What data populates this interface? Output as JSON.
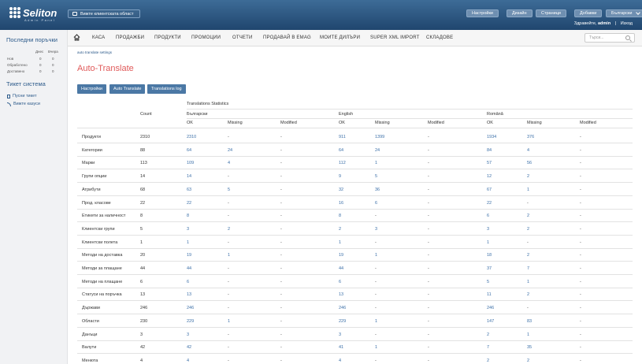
{
  "header": {
    "logo_text": "Seliton",
    "logo_sub": "Admin Panel",
    "client_btn": "Вижте клиентската област",
    "buttons": [
      "Настройки",
      "Дизайн",
      "Страници",
      "Добавки",
      "Български"
    ],
    "greet_prefix": "Здравейте,",
    "greet_user": "admin",
    "greet_sep": "|",
    "logout": "Изход"
  },
  "nav": {
    "items": [
      "КАСА",
      "ПРОДАЖБИ",
      "ПРОДУКТИ",
      "ПРОМОЦИИ",
      "ОТЧЕТИ",
      "ПРОДАВАЙ В EMAG",
      "МОИТЕ ДИЛЪРИ",
      "SUPER XML IMPORT",
      "СКЛАДОВЕ"
    ],
    "search_placeholder": "Търси..."
  },
  "sidebar": {
    "orders_title": "Последни поръчки",
    "col_today": "Днес",
    "col_yesterday": "Вчера",
    "rows": [
      {
        "label": "Нов",
        "today": "0",
        "yesterday": "0"
      },
      {
        "label": "Обработено",
        "today": "0",
        "yesterday": "0"
      },
      {
        "label": "Доставено",
        "today": "0",
        "yesterday": "0"
      }
    ],
    "tickets_title": "Тикет система",
    "links": [
      "Пусни тикет",
      "Вижте казуси"
    ]
  },
  "main": {
    "breadcrumb": "auto translate settings",
    "title": "Auto-Translate",
    "tabs": [
      "Настройки",
      "Auto Translate",
      "Translations log"
    ],
    "stats_title": "Translations Statistics",
    "count_header": "Count",
    "languages": [
      "Български",
      "English",
      "Română"
    ],
    "sub_headers": [
      "OK",
      "Missing",
      "Modified"
    ],
    "rows": [
      {
        "label": "Продукти",
        "count": "2310",
        "v": [
          "2310",
          "-",
          "-",
          "911",
          "1399",
          "-",
          "1934",
          "376",
          "-"
        ]
      },
      {
        "label": "Категории",
        "count": "88",
        "v": [
          "64",
          "24",
          "-",
          "64",
          "24",
          "-",
          "84",
          "4",
          "-"
        ]
      },
      {
        "label": "Марки",
        "count": "113",
        "v": [
          "109",
          "4",
          "-",
          "112",
          "1",
          "-",
          "57",
          "56",
          "-"
        ]
      },
      {
        "label": "Групи опции",
        "count": "14",
        "v": [
          "14",
          "-",
          "-",
          "9",
          "5",
          "-",
          "12",
          "2",
          "-"
        ]
      },
      {
        "label": "Атрибути",
        "count": "68",
        "v": [
          "63",
          "5",
          "-",
          "32",
          "36",
          "-",
          "67",
          "1",
          "-"
        ]
      },
      {
        "label": "Прод. класове",
        "count": "22",
        "v": [
          "22",
          "-",
          "-",
          "16",
          "6",
          "-",
          "22",
          "-",
          "-"
        ]
      },
      {
        "label": "Етикети за наличност",
        "count": "8",
        "v": [
          "8",
          "-",
          "-",
          "8",
          "-",
          "-",
          "6",
          "2",
          "-"
        ]
      },
      {
        "label": "Клиентски групи",
        "count": "5",
        "v": [
          "3",
          "2",
          "-",
          "2",
          "3",
          "-",
          "3",
          "2",
          "-"
        ]
      },
      {
        "label": "Клиентски полета",
        "count": "1",
        "v": [
          "1",
          "-",
          "-",
          "1",
          "-",
          "-",
          "1",
          "-",
          "-"
        ]
      },
      {
        "label": "Методи на доставка",
        "count": "20",
        "v": [
          "19",
          "1",
          "-",
          "19",
          "1",
          "-",
          "18",
          "2",
          "-"
        ]
      },
      {
        "label": "Методи за плащане",
        "count": "44",
        "v": [
          "44",
          "-",
          "-",
          "44",
          "-",
          "-",
          "37",
          "7",
          "-"
        ]
      },
      {
        "label": "Методи на плащане",
        "count": "6",
        "v": [
          "6",
          "-",
          "-",
          "6",
          "-",
          "-",
          "5",
          "1",
          "-"
        ]
      },
      {
        "label": "Статуси на поръчка",
        "count": "13",
        "v": [
          "13",
          "-",
          "-",
          "13",
          "-",
          "-",
          "11",
          "2",
          "-"
        ]
      },
      {
        "label": "Държави",
        "count": "246",
        "v": [
          "246",
          "-",
          "-",
          "246",
          "-",
          "-",
          "246",
          "-",
          "-"
        ]
      },
      {
        "label": "Области",
        "count": "230",
        "v": [
          "229",
          "1",
          "-",
          "229",
          "1",
          "-",
          "147",
          "83",
          "-"
        ]
      },
      {
        "label": "Данъци",
        "count": "3",
        "v": [
          "3",
          "-",
          "-",
          "3",
          "-",
          "-",
          "2",
          "1",
          "-"
        ]
      },
      {
        "label": "Валути",
        "count": "42",
        "v": [
          "42",
          "-",
          "-",
          "41",
          "1",
          "-",
          "7",
          "35",
          "-"
        ]
      },
      {
        "label": "Менюта",
        "count": "4",
        "v": [
          "4",
          "-",
          "-",
          "4",
          "-",
          "-",
          "2",
          "2",
          "-"
        ]
      }
    ]
  },
  "colors": {
    "header": "#2b5580",
    "accent_link": "#3b6fa8",
    "title_red": "#e05a5a",
    "tab_button": "#4b78a5"
  }
}
